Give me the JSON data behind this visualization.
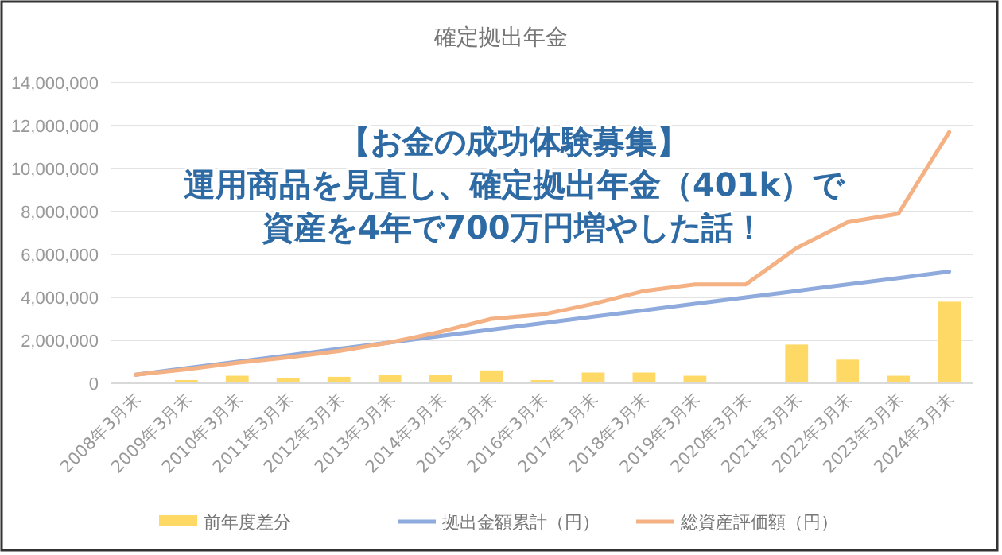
{
  "chart_data": {
    "type": "bar",
    "title": "確定拠出年金",
    "categories": [
      "2008年3月末",
      "2009年3月末",
      "2010年3月末",
      "2011年3月末",
      "2012年3月末",
      "2013年3月末",
      "2014年3月末",
      "2015年3月末",
      "2016年3月末",
      "2017年3月末",
      "2018年3月末",
      "2019年3月末",
      "2020年3月末",
      "2021年3月末",
      "2022年3月末",
      "2023年3月末",
      "2024年3月末"
    ],
    "series": [
      {
        "name": "前年度差分",
        "color": "#ffd966",
        "values": [
          null,
          150000,
          350000,
          250000,
          300000,
          400000,
          400000,
          600000,
          150000,
          500000,
          500000,
          350000,
          null,
          1800000,
          1100000,
          350000,
          3800000
        ]
      },
      {
        "name": "拠出金額累計（円）",
        "type": "line",
        "color": "#8faadc",
        "values": [
          400000,
          700000,
          1000000,
          1300000,
          1600000,
          1900000,
          2200000,
          2500000,
          2800000,
          3100000,
          3400000,
          3700000,
          4000000,
          4300000,
          4600000,
          4900000,
          5200000
        ]
      },
      {
        "name": "総資産評価額（円）",
        "type": "line",
        "color": "#f4b183",
        "values": [
          400000,
          650000,
          950000,
          1200000,
          1500000,
          1900000,
          2400000,
          3000000,
          3200000,
          3700000,
          4300000,
          4600000,
          4600000,
          6300000,
          7500000,
          7900000,
          11700000
        ]
      }
    ],
    "ylim": [
      0,
      14000000
    ],
    "yticks": [
      {
        "value": 0,
        "label": "0"
      },
      {
        "value": 2000000,
        "label": "2,000,000"
      },
      {
        "value": 4000000,
        "label": "4,000,000"
      },
      {
        "value": 6000000,
        "label": "6,000,000"
      },
      {
        "value": 8000000,
        "label": "8,000,000"
      },
      {
        "value": 10000000,
        "label": "10,000,000"
      },
      {
        "value": 12000000,
        "label": "12,000,000"
      },
      {
        "value": 14000000,
        "label": "14,000,000"
      }
    ],
    "grid": "y",
    "legend": "bottom",
    "annotations": [
      "【お金の成功体験募集】",
      "運用商品を見直し、確定拠出年金（401k）で",
      "資産を4年で700万円増やした話！"
    ]
  }
}
